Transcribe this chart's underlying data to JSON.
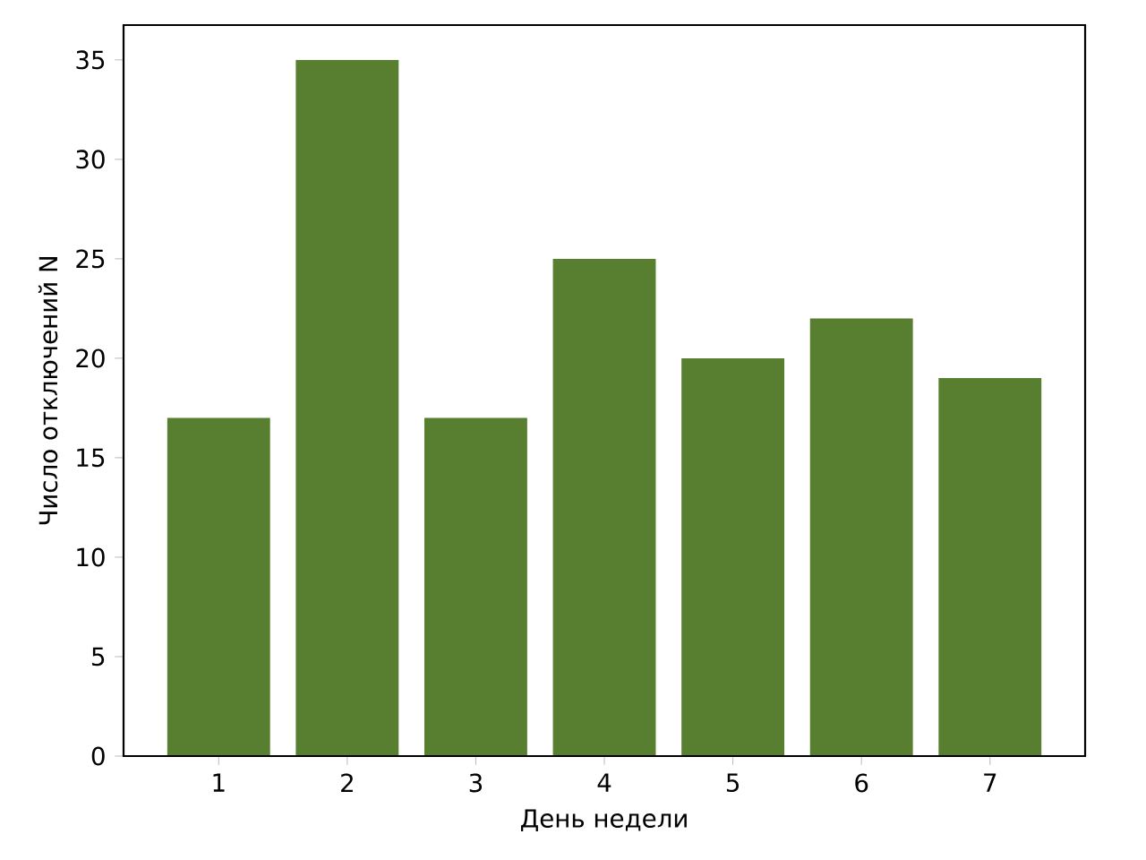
{
  "chart_data": {
    "type": "bar",
    "xlabel": "День недели",
    "ylabel": "Число отключений N",
    "x": [
      1,
      2,
      3,
      4,
      5,
      6,
      7
    ],
    "values": [
      17,
      35,
      17,
      25,
      20,
      22,
      19
    ],
    "color": "#577f2f",
    "xlim": [
      0.26,
      7.74
    ],
    "ylim": [
      0,
      36.75
    ],
    "xticks": [
      1,
      2,
      3,
      4,
      5,
      6,
      7
    ],
    "yticks": [
      0,
      5,
      10,
      15,
      20,
      25,
      30,
      35
    ]
  }
}
